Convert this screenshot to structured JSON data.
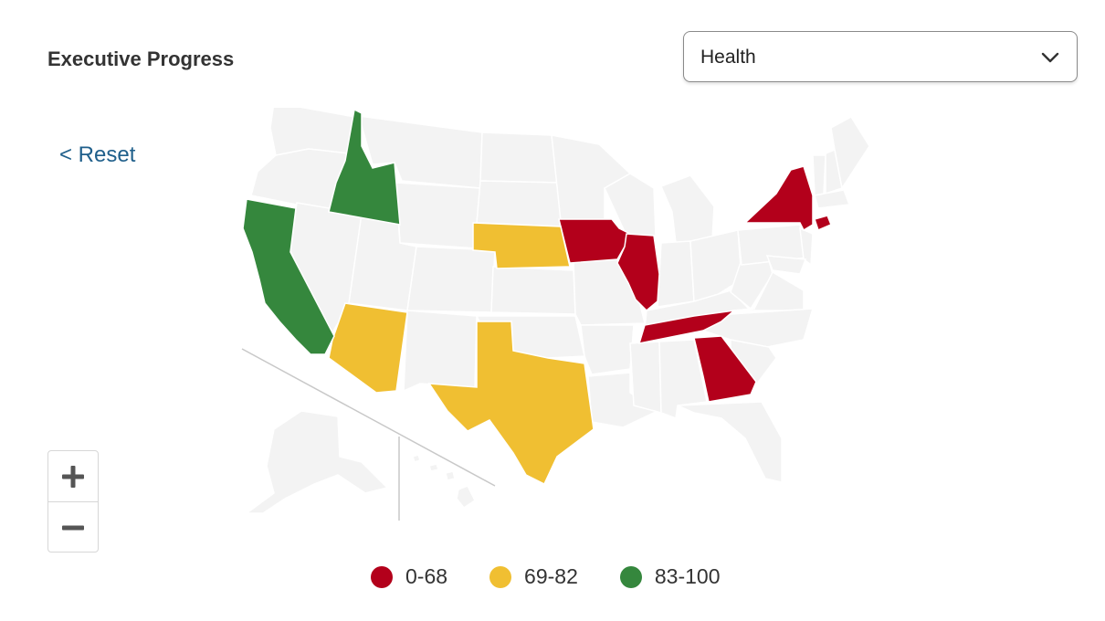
{
  "header": {
    "title": "Executive Progress"
  },
  "dropdown": {
    "selected": "Health"
  },
  "controls": {
    "reset_label": "< Reset"
  },
  "legend": [
    {
      "label": "0-68",
      "color": "#b3001b"
    },
    {
      "label": "69-82",
      "color": "#f0bf32"
    },
    {
      "label": "83-100",
      "color": "#35873d"
    }
  ],
  "map": {
    "base_color": "#f3f3f3",
    "state_colors": {
      "red": [
        "IA",
        "IL",
        "TN",
        "GA",
        "NY",
        "CT"
      ],
      "yellow": [
        "NE",
        "AZ",
        "TX"
      ],
      "green": [
        "CA",
        "ID"
      ]
    }
  }
}
